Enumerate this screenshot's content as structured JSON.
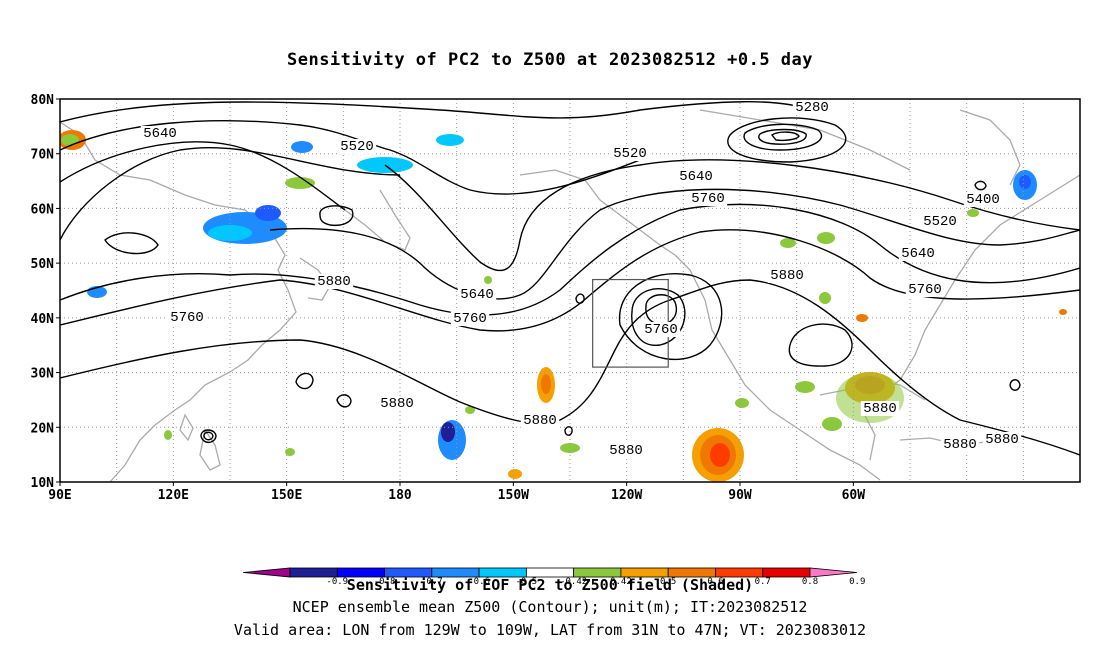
{
  "title": "Sensitivity of PC2 to Z500 at 2023082512 +0.5 day",
  "lat_labels": [
    "80N",
    "70N",
    "60N",
    "50N",
    "40N",
    "30N",
    "20N",
    "10N"
  ],
  "lon_labels": [
    "90E",
    "120E",
    "150E",
    "180",
    "150W",
    "120W",
    "90W",
    "60W"
  ],
  "contour_labels": [
    {
      "text": "5280"
    },
    {
      "text": "5520"
    },
    {
      "text": "5640"
    },
    {
      "text": "5520"
    },
    {
      "text": "5640"
    },
    {
      "text": "5760"
    },
    {
      "text": "5400"
    },
    {
      "text": "5520"
    },
    {
      "text": "5640"
    },
    {
      "text": "5760"
    },
    {
      "text": "5880"
    },
    {
      "text": "5640"
    },
    {
      "text": "5760"
    },
    {
      "text": "5760"
    },
    {
      "text": "5880"
    },
    {
      "text": "5760"
    },
    {
      "text": "5880"
    },
    {
      "text": "5880"
    },
    {
      "text": "5880"
    },
    {
      "text": "5880"
    },
    {
      "text": "5880"
    },
    {
      "text": "5880"
    }
  ],
  "colorbar": {
    "ticks": [
      "-0.9",
      "-0.8",
      "-0.7",
      "-0.6",
      "-0.5",
      "-0.42",
      "0.42",
      "0.5",
      "0.6",
      "0.7",
      "0.8",
      "0.9"
    ],
    "colors": [
      "#a0008c",
      "#1e1e96",
      "#0000ff",
      "#1e5aff",
      "#1e8cff",
      "#00c8ff",
      "#ffffff",
      "#8cc83c",
      "#f5a000",
      "#f07800",
      "#ff3c00",
      "#e60000",
      "#ff78c8"
    ]
  },
  "caption_line1": "Sensitivity of EOF PC2 to Z500 field (Shaded)",
  "caption_line2": "NCEP ensemble mean Z500 (Contour); unit(m); IT:2023082512",
  "caption_line3": "Valid area: LON from 129W to 109W, LAT from 31N to 47N; VT: 2023083012",
  "valid_area": {
    "lon_from": -129,
    "lon_to": -109,
    "lat_from": 31,
    "lat_to": 47
  },
  "colors": {
    "coast": "#aaaaaa",
    "contour": "#000000",
    "grid": "#999999"
  }
}
